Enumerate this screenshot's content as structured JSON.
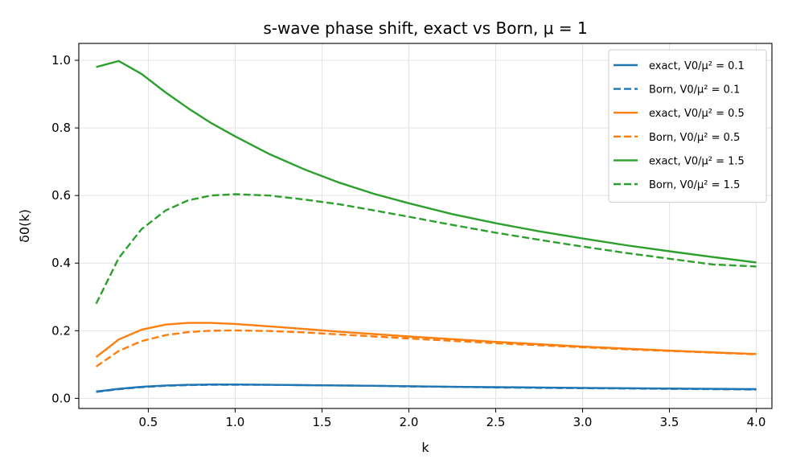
{
  "chart_data": {
    "type": "line",
    "title": "s-wave phase shift, exact vs Born, μ = 1",
    "xlabel": "k",
    "ylabel": "δ0(k)",
    "xlim": [
      0.1,
      4.09
    ],
    "ylim": [
      -0.03,
      1.05
    ],
    "xticks": [
      0.5,
      1.0,
      1.5,
      2.0,
      2.5,
      3.0,
      3.5,
      4.0
    ],
    "xtick_labels": [
      "0.5",
      "1.0",
      "1.5",
      "2.0",
      "2.5",
      "3.0",
      "3.5",
      "4.0"
    ],
    "yticks": [
      0.0,
      0.2,
      0.4,
      0.6,
      0.8,
      1.0
    ],
    "ytick_labels": [
      "0.0",
      "0.2",
      "0.4",
      "0.6",
      "0.8",
      "1.0"
    ],
    "grid": true,
    "legend_position": "top-right",
    "x": [
      0.2,
      0.33,
      0.46,
      0.6,
      0.73,
      0.86,
      1.0,
      1.2,
      1.4,
      1.6,
      1.8,
      2.0,
      2.25,
      2.5,
      2.75,
      3.0,
      3.25,
      3.5,
      3.75,
      4.0
    ],
    "series": [
      {
        "name": "exact, V0/μ² = 0.1",
        "color": "#1f77b4",
        "dash": "solid",
        "values": [
          0.02,
          0.028,
          0.034,
          0.038,
          0.04,
          0.041,
          0.041,
          0.04,
          0.039,
          0.038,
          0.037,
          0.036,
          0.034,
          0.033,
          0.032,
          0.031,
          0.03,
          0.029,
          0.028,
          0.027
        ]
      },
      {
        "name": "Born, V0/μ² = 0.1",
        "color": "#1f77b4",
        "dash": "dashed",
        "values": [
          0.019,
          0.027,
          0.033,
          0.037,
          0.039,
          0.04,
          0.04,
          0.04,
          0.039,
          0.038,
          0.037,
          0.035,
          0.034,
          0.032,
          0.031,
          0.03,
          0.029,
          0.028,
          0.027,
          0.026
        ]
      },
      {
        "name": "exact, V0/μ² = 0.5",
        "color": "#ff7f0e",
        "dash": "solid",
        "values": [
          0.122,
          0.174,
          0.203,
          0.218,
          0.223,
          0.223,
          0.22,
          0.213,
          0.205,
          0.197,
          0.19,
          0.183,
          0.175,
          0.167,
          0.16,
          0.153,
          0.147,
          0.141,
          0.136,
          0.131
        ]
      },
      {
        "name": "Born, V0/μ² = 0.5",
        "color": "#ff7f0e",
        "dash": "dashed",
        "values": [
          0.094,
          0.14,
          0.169,
          0.187,
          0.196,
          0.2,
          0.201,
          0.199,
          0.195,
          0.189,
          0.183,
          0.177,
          0.17,
          0.163,
          0.157,
          0.151,
          0.145,
          0.14,
          0.135,
          0.13
        ]
      },
      {
        "name": "exact, V0/μ² = 1.5",
        "color": "#2ca02c",
        "dash": "solid",
        "values": [
          0.98,
          0.998,
          0.96,
          0.905,
          0.858,
          0.815,
          0.775,
          0.722,
          0.677,
          0.638,
          0.605,
          0.577,
          0.545,
          0.518,
          0.494,
          0.473,
          0.453,
          0.435,
          0.418,
          0.402
        ]
      },
      {
        "name": "Born, V0/μ² = 1.5",
        "color": "#2ca02c",
        "dash": "dashed",
        "values": [
          0.28,
          0.415,
          0.5,
          0.556,
          0.586,
          0.6,
          0.604,
          0.6,
          0.588,
          0.574,
          0.556,
          0.537,
          0.513,
          0.49,
          0.469,
          0.449,
          0.43,
          0.413,
          0.396,
          0.39
        ]
      }
    ]
  }
}
